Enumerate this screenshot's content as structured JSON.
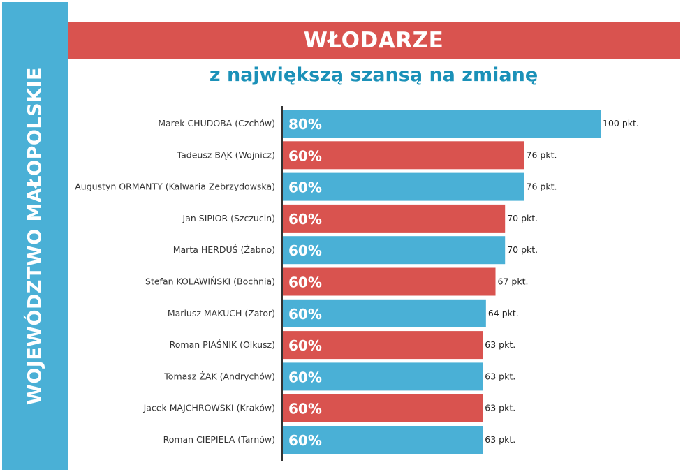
{
  "side_label": "WOJEWÓDZTWO MAŁOPOLSKIE",
  "title": "WŁODARZE",
  "subtitle": "z największą szansą na zmianę",
  "colors": {
    "blue": "#4ab0d6",
    "red": "#d9534f",
    "subtitle": "#1b91b8"
  },
  "chart_data": {
    "type": "bar",
    "orientation": "horizontal",
    "xlim": [
      0,
      100
    ],
    "categories": [
      "Marek CHUDOBA (Czchów)",
      "Tadeusz BĄK (Wojnicz)",
      "Augustyn ORMANTY (Kalwaria Zebrzydowska)",
      "Jan SIPIOR (Szczucin)",
      "Marta HERDUŚ (Żabno)",
      "Stefan KOLAWIŃSKI (Bochnia)",
      "Mariusz MAKUCH (Zator)",
      "Roman PIAŚNIK (Olkusz)",
      "Tomasz ŻAK (Andrychów)",
      "Jacek MAJCHROWSKI (Kraków)",
      "Roman CIEPIELA (Tarnów)"
    ],
    "values": [
      100,
      76,
      76,
      70,
      70,
      67,
      64,
      63,
      63,
      63,
      63
    ],
    "value_labels": [
      "100 pkt.",
      "76 pkt.",
      "76 pkt.",
      "70 pkt.",
      "70 pkt.",
      "67 pkt.",
      "64 pkt.",
      "63 pkt.",
      "63 pkt.",
      "63 pkt.",
      "63 pkt."
    ],
    "percent_labels": [
      "80%",
      "60%",
      "60%",
      "60%",
      "60%",
      "60%",
      "60%",
      "60%",
      "60%",
      "60%",
      "60%"
    ],
    "bar_colors": [
      "blue",
      "red",
      "blue",
      "red",
      "blue",
      "red",
      "blue",
      "red",
      "blue",
      "red",
      "blue"
    ]
  }
}
